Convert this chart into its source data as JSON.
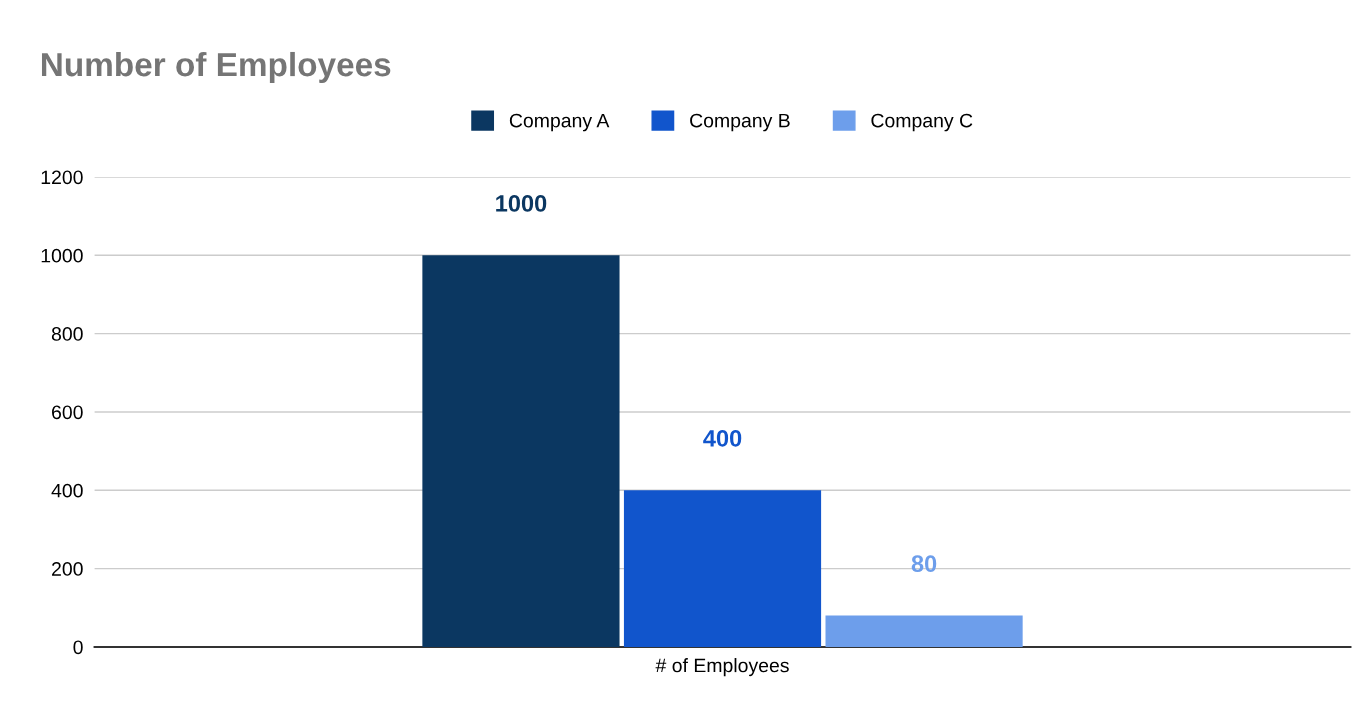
{
  "chart_data": {
    "type": "bar",
    "title": "Number of Employees",
    "categories": [
      "# of Employees"
    ],
    "series": [
      {
        "name": "Company A",
        "color": "#0b3761",
        "values": [
          1000
        ]
      },
      {
        "name": "Company B",
        "color": "#1155cc",
        "values": [
          400
        ]
      },
      {
        "name": "Company C",
        "color": "#6d9eeb",
        "values": [
          80
        ]
      }
    ],
    "ylim": [
      0,
      1200
    ],
    "yticks": [
      0,
      200,
      400,
      600,
      800,
      1000,
      1200
    ],
    "grid": "y",
    "legend": "top",
    "data_labels": true
  }
}
